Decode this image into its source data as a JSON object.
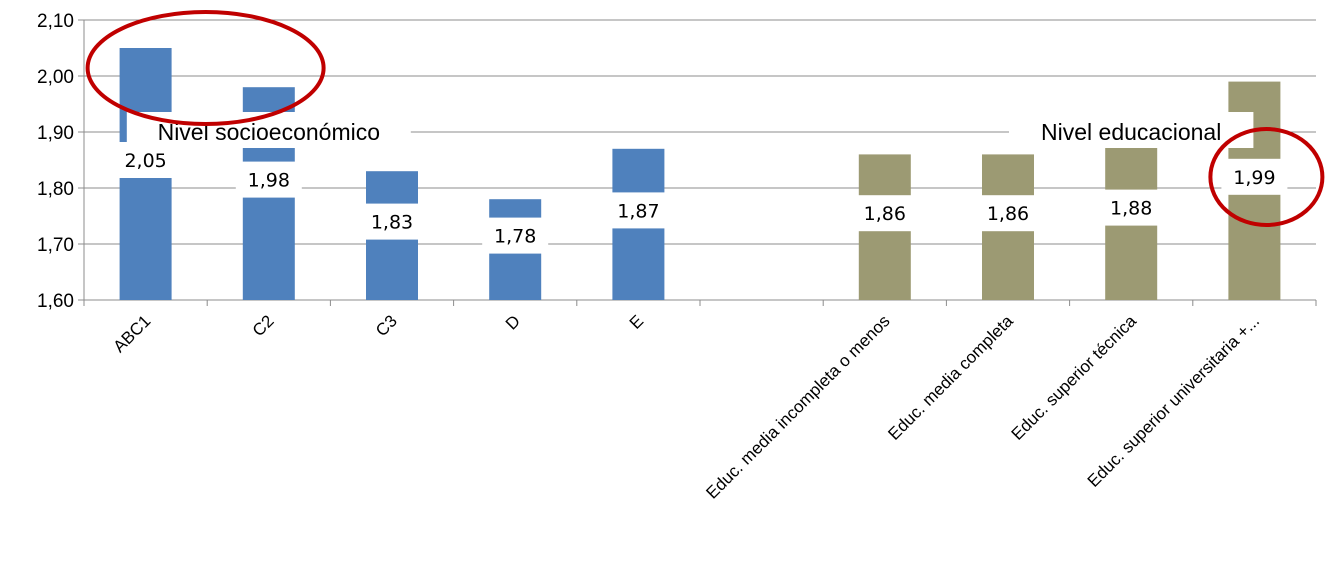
{
  "chart_data": {
    "type": "bar",
    "categories": [
      "ABC1",
      "C2",
      "C3",
      "D",
      "E",
      "",
      "Educ. media incompleta o menos",
      "Educ. media completa",
      "Educ. superior técnica",
      "Educ. superior universitaria +..."
    ],
    "values": [
      2.05,
      1.98,
      1.83,
      1.78,
      1.87,
      null,
      1.86,
      1.86,
      1.88,
      1.99
    ],
    "data_labels": [
      "2,05",
      "1,98",
      "1,83",
      "1,78",
      "1,87",
      "",
      "1,86",
      "1,86",
      "1,88",
      "1,99"
    ],
    "bar_colors": [
      "#4f81bd",
      "#4f81bd",
      "#4f81bd",
      "#4f81bd",
      "#4f81bd",
      "",
      "#9c9a73",
      "#9c9a73",
      "#9c9a73",
      "#9c9a73"
    ],
    "ylim": [
      1.6,
      2.1
    ],
    "yticks": [
      1.6,
      1.7,
      1.8,
      1.9,
      2.0,
      2.1
    ],
    "ytick_labels": [
      "1,60",
      "1,70",
      "1,80",
      "1,90",
      "2,00",
      "2,10"
    ],
    "grid": true,
    "group_labels": [
      {
        "text": "Nivel socioeconómico",
        "category_index": 1
      },
      {
        "text": "Nivel educacional",
        "category_index": 8
      }
    ],
    "highlight_circles": [
      {
        "around": "ABC1",
        "color": "#c00000"
      },
      {
        "around": "Educ. superior universitaria +...",
        "color": "#c00000"
      }
    ],
    "title": "",
    "xlabel": "",
    "ylabel": ""
  }
}
